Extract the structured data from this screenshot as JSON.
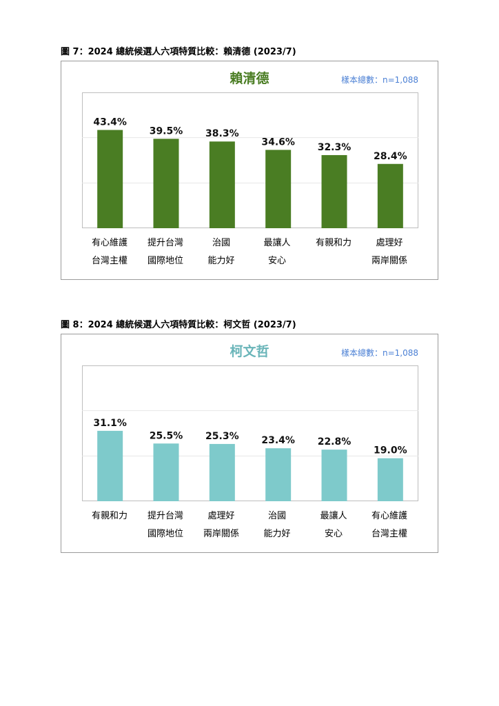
{
  "figures": [
    {
      "caption": "圖 7：2024 總統候選人六項特質比較：賴清德 (2023/7)",
      "name": "賴清德",
      "sample_note": "樣本總數：n=1,088",
      "name_color": "#4a7d23",
      "bar_color": "#4a7d23",
      "labels": [
        [
          "有心維護",
          "台灣主權"
        ],
        [
          "提升台灣",
          "國際地位"
        ],
        [
          "治國",
          "能力好"
        ],
        [
          "最讓人",
          "安心"
        ],
        [
          "有親和力",
          ""
        ],
        [
          "處理好",
          "兩岸關係"
        ]
      ],
      "value_labels": [
        "43.4%",
        "39.5%",
        "38.3%",
        "34.6%",
        "32.3%",
        "28.4%"
      ]
    },
    {
      "caption": "圖 8：2024 總統候選人六項特質比較：柯文哲 (2023/7)",
      "name": "柯文哲",
      "sample_note": "樣本總數：n=1,088",
      "name_color": "#6ab5b9",
      "bar_color": "#7ecacb",
      "labels": [
        [
          "有親和力",
          ""
        ],
        [
          "提升台灣",
          "國際地位"
        ],
        [
          "處理好",
          "兩岸關係"
        ],
        [
          "治國",
          "能力好"
        ],
        [
          "最讓人",
          "安心"
        ],
        [
          "有心維護",
          "台灣主權"
        ]
      ],
      "value_labels": [
        "31.1%",
        "25.5%",
        "25.3%",
        "23.4%",
        "22.8%",
        "19.0%"
      ]
    }
  ],
  "chart_data": [
    {
      "type": "bar",
      "title": "賴清德",
      "categories": [
        "有心維護台灣主權",
        "提升台灣國際地位",
        "治國能力好",
        "最讓人安心",
        "有親和力",
        "處理好兩岸關係"
      ],
      "values": [
        43.4,
        39.5,
        38.3,
        34.6,
        32.3,
        28.4
      ],
      "ylim": [
        0,
        60
      ],
      "grid": true,
      "legend": "none"
    },
    {
      "type": "bar",
      "title": "柯文哲",
      "categories": [
        "有親和力",
        "提升台灣國際地位",
        "處理好兩岸關係",
        "治國能力好",
        "最讓人安心",
        "有心維護台灣主權"
      ],
      "values": [
        31.1,
        25.5,
        25.3,
        23.4,
        22.8,
        19.0
      ],
      "ylim": [
        0,
        60
      ],
      "grid": true,
      "legend": "none"
    }
  ]
}
